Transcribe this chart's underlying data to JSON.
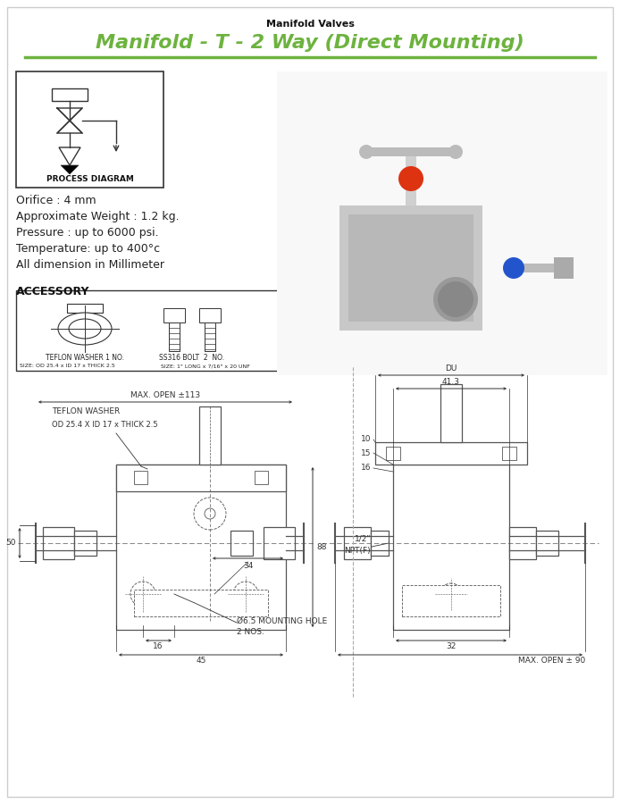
{
  "title_sub": "Manifold Valves",
  "title_main": "Manifold - T - 2 Way (Direct Mounting)",
  "title_color": "#6db33f",
  "title_line_color": "#6db33f",
  "specs": [
    "Orifice : 4 mm",
    "Approximate Weight : 1.2 kg.",
    "Pressure : up to 6000 psi.",
    "Temperature: up to 400°c",
    "All dimension in Millimeter"
  ],
  "accessory_title": "ACCESSORY",
  "acc_item1_name": "TEFLON WASHER 1 NO.",
  "acc_item1_size": "SIZE: OD 25.4 x ID 17 x THICK 2.5",
  "acc_item2_name": "SS316 BOLT  2  NO.",
  "acc_item2_size": "SIZE: 1\" LONG x 7/16\" x 20 UNF",
  "process_diagram_label": "PROCESS DIAGRAM",
  "bg_color": "#ffffff",
  "lc": "#333333",
  "dl": "#555555",
  "ann_color": "#333333",
  "title_fs": 16,
  "subtitle_fs": 8,
  "spec_fs": 9,
  "ann_fs": 6
}
